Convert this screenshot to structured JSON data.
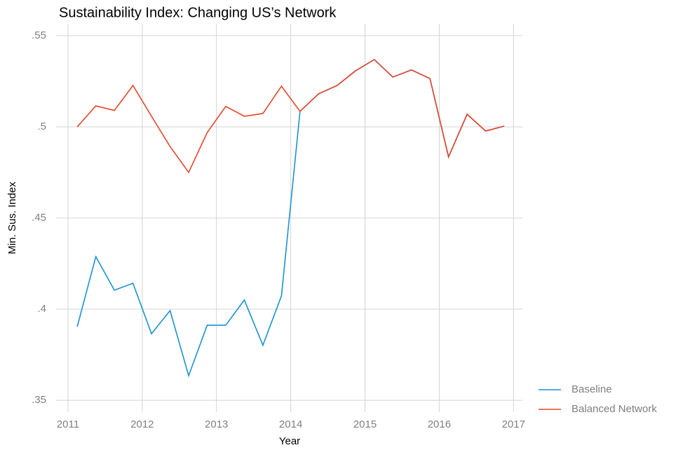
{
  "chart_data": {
    "type": "line",
    "title": "Sustainability Index: Changing US’s Network",
    "xlabel": "Year",
    "ylabel": "Min. Sus. Index",
    "x": [
      2011.125,
      2011.375,
      2011.625,
      2011.875,
      2012.125,
      2012.375,
      2012.625,
      2012.875,
      2013.125,
      2013.375,
      2013.625,
      2013.875,
      2014.125,
      2014.375,
      2014.625,
      2014.875,
      2015.125,
      2015.375,
      2015.625,
      2015.875,
      2016.125,
      2016.375,
      2016.625,
      2016.875
    ],
    "series": [
      {
        "name": "Baseline",
        "color": "#1a92d2",
        "values": [
          0.3904,
          0.4288,
          0.4104,
          0.4142,
          0.3865,
          0.3992,
          0.3635,
          0.3912,
          0.3912,
          0.405,
          0.3802,
          0.4073,
          0.5085,
          0.5181,
          0.5227,
          0.5308,
          0.5369,
          0.5273,
          0.5312,
          0.5265,
          0.4835,
          0.5069,
          0.4977,
          0.5004
        ]
      },
      {
        "name": "Balanced Network",
        "color": "#e5452a",
        "values": [
          0.5,
          0.5115,
          0.509,
          0.5227,
          0.5058,
          0.4892,
          0.475,
          0.4969,
          0.5112,
          0.5058,
          0.5073,
          0.5223,
          0.5085,
          0.5181,
          0.5227,
          0.5308,
          0.5369,
          0.5273,
          0.5312,
          0.5265,
          0.4835,
          0.5069,
          0.4977,
          0.5004
        ]
      }
    ],
    "xlim": [
      2010.84,
      2017.12
    ],
    "xticks": [
      2011,
      2012,
      2013,
      2014,
      2015,
      2016,
      2017
    ],
    "ylim": [
      0.3435,
      0.5565
    ],
    "yticks": [
      {
        "value": 0.35,
        "label": ".35"
      },
      {
        "value": 0.4,
        "label": ".4"
      },
      {
        "value": 0.45,
        "label": ".45"
      },
      {
        "value": 0.5,
        "label": ".5"
      },
      {
        "value": 0.55,
        "label": ".55"
      }
    ],
    "grid": true,
    "legend": "right"
  }
}
